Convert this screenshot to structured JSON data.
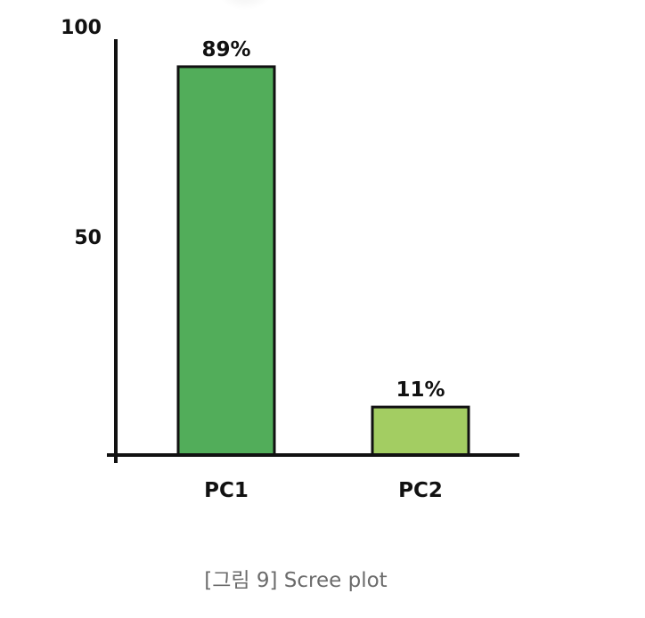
{
  "chart_data": {
    "type": "bar",
    "categories": [
      "PC1",
      "PC2"
    ],
    "values": [
      89,
      11
    ],
    "data_labels": [
      "89%",
      "11%"
    ],
    "colors": [
      "#52ad5a",
      "#a3cd62"
    ],
    "yticks": [
      50,
      100
    ],
    "ylim": [
      0,
      100
    ],
    "grid": false
  },
  "caption": "[그림 9] Scree plot"
}
